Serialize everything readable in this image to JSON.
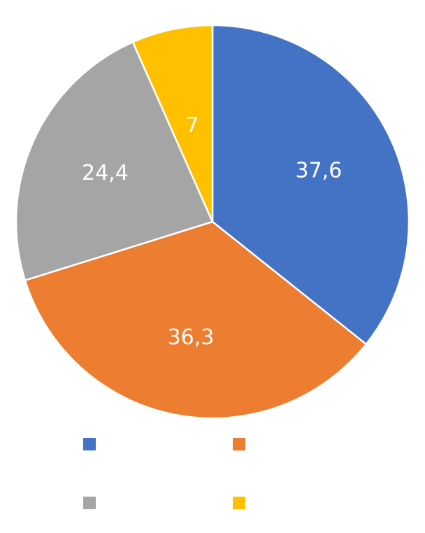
{
  "chart_data": {
    "type": "pie",
    "title": "",
    "start_angle_deg": 0,
    "direction": "clockwise",
    "legend": {
      "position": "bottom",
      "columns": 2
    },
    "series": [
      {
        "name": "",
        "value": 37.6,
        "label": "37,6",
        "color": "#4472C4"
      },
      {
        "name": "",
        "value": 36.3,
        "label": "36,3",
        "color": "#ED7D31"
      },
      {
        "name": "",
        "value": 24.4,
        "label": "24,4",
        "color": "#A5A5A5"
      },
      {
        "name": "",
        "value": 7,
        "label": "7",
        "color": "#FFC000"
      }
    ]
  }
}
